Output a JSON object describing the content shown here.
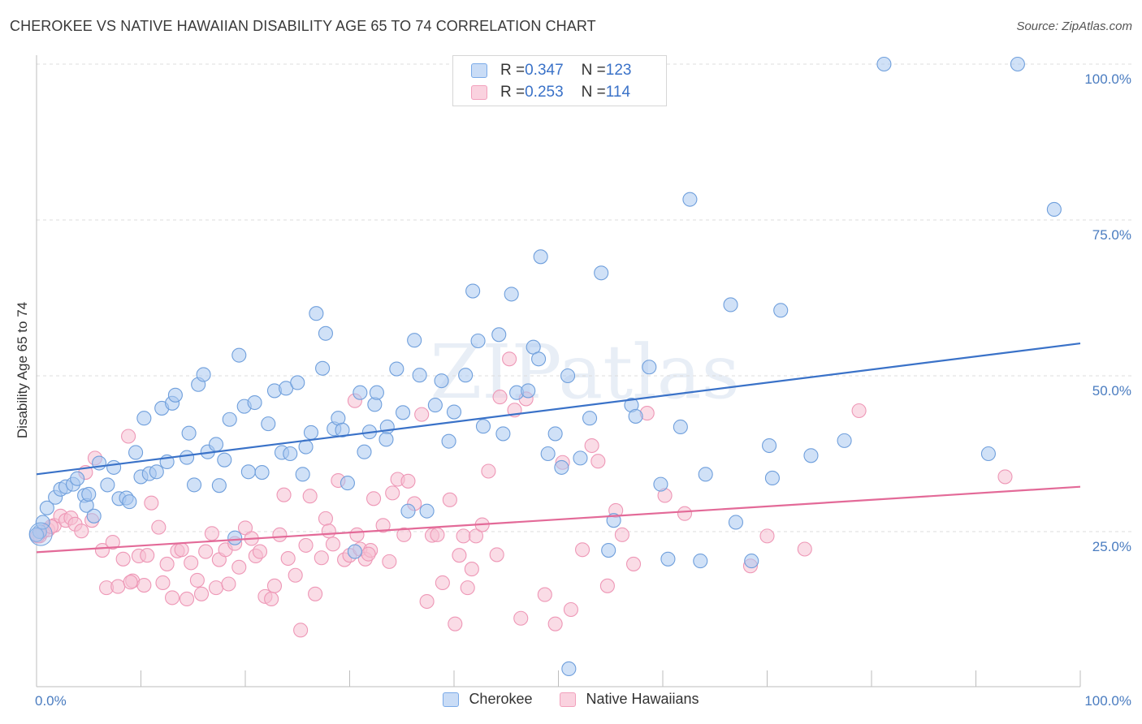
{
  "header": {
    "title": "CHEROKEE VS NATIVE HAWAIIAN DISABILITY AGE 65 TO 74 CORRELATION CHART",
    "source": "Source: ZipAtlas.com"
  },
  "watermark": "ZIPatlas",
  "legend_top": {
    "rows": [
      {
        "r_label": "R = ",
        "r_value": "0.347",
        "n_label": "N = ",
        "n_value": "123",
        "color": "#7aaae8"
      },
      {
        "r_label": "R = ",
        "r_value": "0.253",
        "n_label": "N = ",
        "n_value": "114",
        "color": "#f2a0bc"
      }
    ]
  },
  "legend_bottom": [
    {
      "label": "Cherokee",
      "color": "#7aaae8"
    },
    {
      "label": "Native Hawaiians",
      "color": "#f2a0bc"
    }
  ],
  "colors": {
    "blue": "#3a72c8",
    "pink": "#e36a98",
    "blue_fill": "#aac8f0",
    "pink_fill": "#f6c0d2",
    "grid": "#dcdcdc"
  },
  "chart_data": {
    "type": "scatter",
    "title": "CHEROKEE VS NATIVE HAWAIIAN DISABILITY AGE 65 TO 74 CORRELATION CHART",
    "xlabel": "",
    "ylabel": "Disability Age 65 to 74",
    "xlim": [
      0,
      100
    ],
    "ylim": [
      0,
      102
    ],
    "x_tick_labels": [
      "0.0%",
      "100.0%"
    ],
    "y_ticks": [
      25,
      50,
      75,
      100
    ],
    "y_tick_labels": [
      "25.0%",
      "50.0%",
      "75.0%",
      "100.0%"
    ],
    "grid": "horizontal dashed",
    "legend_position": "top-center",
    "series": [
      {
        "name": "Cherokee",
        "color": "#7aaae8",
        "trend": {
          "x": [
            0,
            100
          ],
          "y": [
            34.2,
            55.2
          ]
        },
        "points": [
          [
            0.3,
            25.0
          ],
          [
            0.6,
            26.5
          ],
          [
            1.0,
            28.8
          ],
          [
            1.8,
            30.5
          ],
          [
            2.3,
            31.8
          ],
          [
            2.8,
            32.2
          ],
          [
            3.5,
            32.6
          ],
          [
            3.9,
            33.5
          ],
          [
            4.6,
            30.8
          ],
          [
            4.8,
            29.2
          ],
          [
            5.0,
            31.0
          ],
          [
            5.5,
            27.5
          ],
          [
            6.0,
            36.0
          ],
          [
            6.8,
            32.5
          ],
          [
            7.4,
            35.3
          ],
          [
            7.9,
            30.3
          ],
          [
            8.6,
            30.4
          ],
          [
            8.9,
            29.8
          ],
          [
            9.5,
            37.7
          ],
          [
            10.0,
            33.8
          ],
          [
            10.3,
            43.2
          ],
          [
            10.8,
            34.3
          ],
          [
            11.5,
            34.6
          ],
          [
            12.0,
            44.8
          ],
          [
            12.5,
            36.2
          ],
          [
            13.0,
            45.6
          ],
          [
            13.3,
            46.9
          ],
          [
            14.4,
            36.9
          ],
          [
            14.6,
            40.8
          ],
          [
            15.1,
            32.5
          ],
          [
            15.5,
            48.6
          ],
          [
            16.0,
            50.2
          ],
          [
            16.4,
            37.8
          ],
          [
            17.2,
            39.0
          ],
          [
            17.5,
            32.4
          ],
          [
            18.0,
            36.5
          ],
          [
            18.5,
            43.0
          ],
          [
            19.0,
            24.0
          ],
          [
            19.4,
            53.3
          ],
          [
            19.9,
            45.1
          ],
          [
            20.3,
            34.6
          ],
          [
            20.9,
            45.7
          ],
          [
            21.6,
            34.5
          ],
          [
            22.2,
            42.3
          ],
          [
            22.8,
            47.6
          ],
          [
            23.5,
            37.7
          ],
          [
            23.9,
            48.0
          ],
          [
            24.3,
            37.5
          ],
          [
            25.0,
            48.9
          ],
          [
            25.5,
            34.2
          ],
          [
            25.8,
            38.6
          ],
          [
            26.3,
            40.9
          ],
          [
            26.8,
            60.0
          ],
          [
            27.4,
            51.2
          ],
          [
            27.7,
            56.8
          ],
          [
            28.5,
            41.5
          ],
          [
            28.9,
            43.2
          ],
          [
            29.3,
            41.3
          ],
          [
            29.8,
            32.8
          ],
          [
            30.5,
            21.8
          ],
          [
            31.0,
            47.3
          ],
          [
            31.4,
            37.8
          ],
          [
            31.9,
            41.0
          ],
          [
            32.4,
            45.4
          ],
          [
            32.6,
            47.3
          ],
          [
            33.6,
            41.8
          ],
          [
            33.5,
            39.8
          ],
          [
            34.5,
            51.1
          ],
          [
            35.1,
            44.1
          ],
          [
            35.6,
            28.3
          ],
          [
            36.2,
            55.7
          ],
          [
            36.7,
            50.1
          ],
          [
            37.4,
            28.3
          ],
          [
            38.2,
            45.3
          ],
          [
            38.8,
            49.2
          ],
          [
            39.5,
            39.5
          ],
          [
            40.0,
            44.2
          ],
          [
            41.1,
            50.1
          ],
          [
            41.8,
            63.6
          ],
          [
            42.3,
            55.6
          ],
          [
            42.8,
            41.9
          ],
          [
            44.3,
            56.6
          ],
          [
            44.7,
            40.7
          ],
          [
            45.5,
            63.1
          ],
          [
            46.0,
            47.3
          ],
          [
            47.1,
            47.6
          ],
          [
            47.6,
            54.6
          ],
          [
            48.1,
            52.7
          ],
          [
            48.3,
            69.1
          ],
          [
            49.0,
            37.5
          ],
          [
            49.7,
            40.7
          ],
          [
            50.3,
            35.3
          ],
          [
            50.9,
            50.0
          ],
          [
            51.0,
            3.0
          ],
          [
            52.1,
            36.8
          ],
          [
            53.0,
            43.2
          ],
          [
            54.1,
            66.5
          ],
          [
            54.8,
            22.0
          ],
          [
            55.3,
            26.8
          ],
          [
            57.0,
            45.3
          ],
          [
            57.4,
            43.5
          ],
          [
            58.7,
            51.4
          ],
          [
            59.8,
            32.6
          ],
          [
            60.5,
            20.6
          ],
          [
            61.7,
            41.8
          ],
          [
            62.6,
            78.3
          ],
          [
            63.6,
            20.3
          ],
          [
            64.1,
            34.2
          ],
          [
            66.5,
            61.4
          ],
          [
            67.0,
            26.5
          ],
          [
            68.5,
            20.3
          ],
          [
            70.2,
            38.8
          ],
          [
            70.5,
            33.6
          ],
          [
            71.3,
            60.5
          ],
          [
            74.2,
            37.2
          ],
          [
            77.4,
            39.6
          ],
          [
            81.2,
            100.0
          ],
          [
            91.2,
            37.5
          ],
          [
            94.0,
            100.0
          ],
          [
            97.5,
            76.7
          ],
          [
            0.0,
            24.5
          ]
        ]
      },
      {
        "name": "Native Hawaiians",
        "color": "#f2a0bc",
        "trend": {
          "x": [
            0,
            100
          ],
          "y": [
            21.7,
            32.2
          ]
        },
        "points": [
          [
            0.3,
            24.3
          ],
          [
            0.6,
            25.0
          ],
          [
            1.1,
            25.3
          ],
          [
            1.7,
            26.0
          ],
          [
            2.3,
            27.5
          ],
          [
            2.8,
            26.8
          ],
          [
            3.3,
            27.2
          ],
          [
            3.7,
            26.2
          ],
          [
            4.3,
            25.1
          ],
          [
            4.7,
            34.5
          ],
          [
            5.3,
            26.8
          ],
          [
            5.6,
            36.8
          ],
          [
            6.3,
            22.0
          ],
          [
            6.7,
            16.0
          ],
          [
            7.3,
            23.3
          ],
          [
            7.8,
            16.2
          ],
          [
            8.3,
            20.6
          ],
          [
            8.8,
            40.3
          ],
          [
            9.2,
            17.1
          ],
          [
            9.8,
            21.1
          ],
          [
            10.3,
            16.4
          ],
          [
            10.6,
            21.2
          ],
          [
            11.0,
            29.6
          ],
          [
            11.7,
            25.7
          ],
          [
            12.1,
            16.8
          ],
          [
            12.5,
            19.8
          ],
          [
            13.0,
            14.4
          ],
          [
            13.5,
            21.9
          ],
          [
            13.9,
            22.1
          ],
          [
            14.4,
            14.2
          ],
          [
            14.8,
            20.0
          ],
          [
            15.4,
            17.2
          ],
          [
            15.8,
            15.0
          ],
          [
            16.2,
            21.8
          ],
          [
            16.8,
            24.7
          ],
          [
            17.2,
            16.0
          ],
          [
            17.5,
            20.5
          ],
          [
            18.1,
            22.1
          ],
          [
            18.4,
            16.6
          ],
          [
            19.0,
            23.1
          ],
          [
            19.4,
            19.3
          ],
          [
            20.0,
            25.6
          ],
          [
            20.6,
            23.9
          ],
          [
            21.0,
            21.1
          ],
          [
            21.4,
            21.8
          ],
          [
            21.9,
            14.6
          ],
          [
            22.5,
            14.2
          ],
          [
            22.8,
            16.3
          ],
          [
            23.3,
            24.5
          ],
          [
            23.7,
            30.9
          ],
          [
            24.1,
            20.7
          ],
          [
            24.8,
            18.0
          ],
          [
            25.3,
            9.2
          ],
          [
            25.8,
            22.8
          ],
          [
            26.2,
            30.7
          ],
          [
            26.7,
            15.0
          ],
          [
            27.3,
            20.8
          ],
          [
            27.7,
            27.1
          ],
          [
            28.0,
            25.1
          ],
          [
            28.4,
            23.0
          ],
          [
            28.9,
            33.2
          ],
          [
            29.5,
            20.5
          ],
          [
            30.0,
            21.2
          ],
          [
            30.5,
            46.0
          ],
          [
            30.7,
            24.5
          ],
          [
            31.0,
            22.2
          ],
          [
            31.5,
            20.6
          ],
          [
            32.0,
            22.0
          ],
          [
            32.3,
            30.3
          ],
          [
            33.2,
            26.0
          ],
          [
            33.8,
            20.2
          ],
          [
            34.1,
            31.2
          ],
          [
            34.6,
            33.4
          ],
          [
            35.2,
            24.5
          ],
          [
            35.6,
            33.1
          ],
          [
            36.2,
            29.5
          ],
          [
            36.9,
            43.8
          ],
          [
            37.4,
            13.8
          ],
          [
            37.9,
            24.4
          ],
          [
            38.4,
            24.5
          ],
          [
            38.9,
            16.8
          ],
          [
            39.6,
            30.1
          ],
          [
            40.1,
            10.2
          ],
          [
            40.5,
            21.2
          ],
          [
            40.9,
            24.3
          ],
          [
            41.3,
            16.0
          ],
          [
            41.7,
            19.0
          ],
          [
            42.1,
            24.3
          ],
          [
            42.7,
            26.1
          ],
          [
            43.3,
            34.7
          ],
          [
            44.1,
            21.3
          ],
          [
            44.4,
            46.6
          ],
          [
            45.3,
            52.7
          ],
          [
            45.8,
            44.5
          ],
          [
            46.4,
            11.1
          ],
          [
            46.9,
            46.3
          ],
          [
            48.7,
            14.9
          ],
          [
            49.7,
            10.2
          ],
          [
            50.4,
            36.1
          ],
          [
            51.2,
            12.5
          ],
          [
            52.3,
            22.1
          ],
          [
            53.2,
            38.8
          ],
          [
            53.8,
            36.3
          ],
          [
            54.7,
            16.3
          ],
          [
            55.5,
            28.4
          ],
          [
            56.1,
            24.5
          ],
          [
            57.2,
            19.8
          ],
          [
            58.5,
            44.0
          ],
          [
            60.2,
            30.8
          ],
          [
            62.1,
            27.9
          ],
          [
            68.4,
            19.5
          ],
          [
            70.0,
            24.3
          ],
          [
            73.6,
            22.2
          ],
          [
            78.8,
            44.4
          ],
          [
            92.8,
            33.8
          ],
          [
            0.1,
            24.3
          ],
          [
            1.4,
            25.8
          ],
          [
            9.0,
            16.9
          ],
          [
            31.8,
            21.4
          ]
        ]
      }
    ]
  }
}
